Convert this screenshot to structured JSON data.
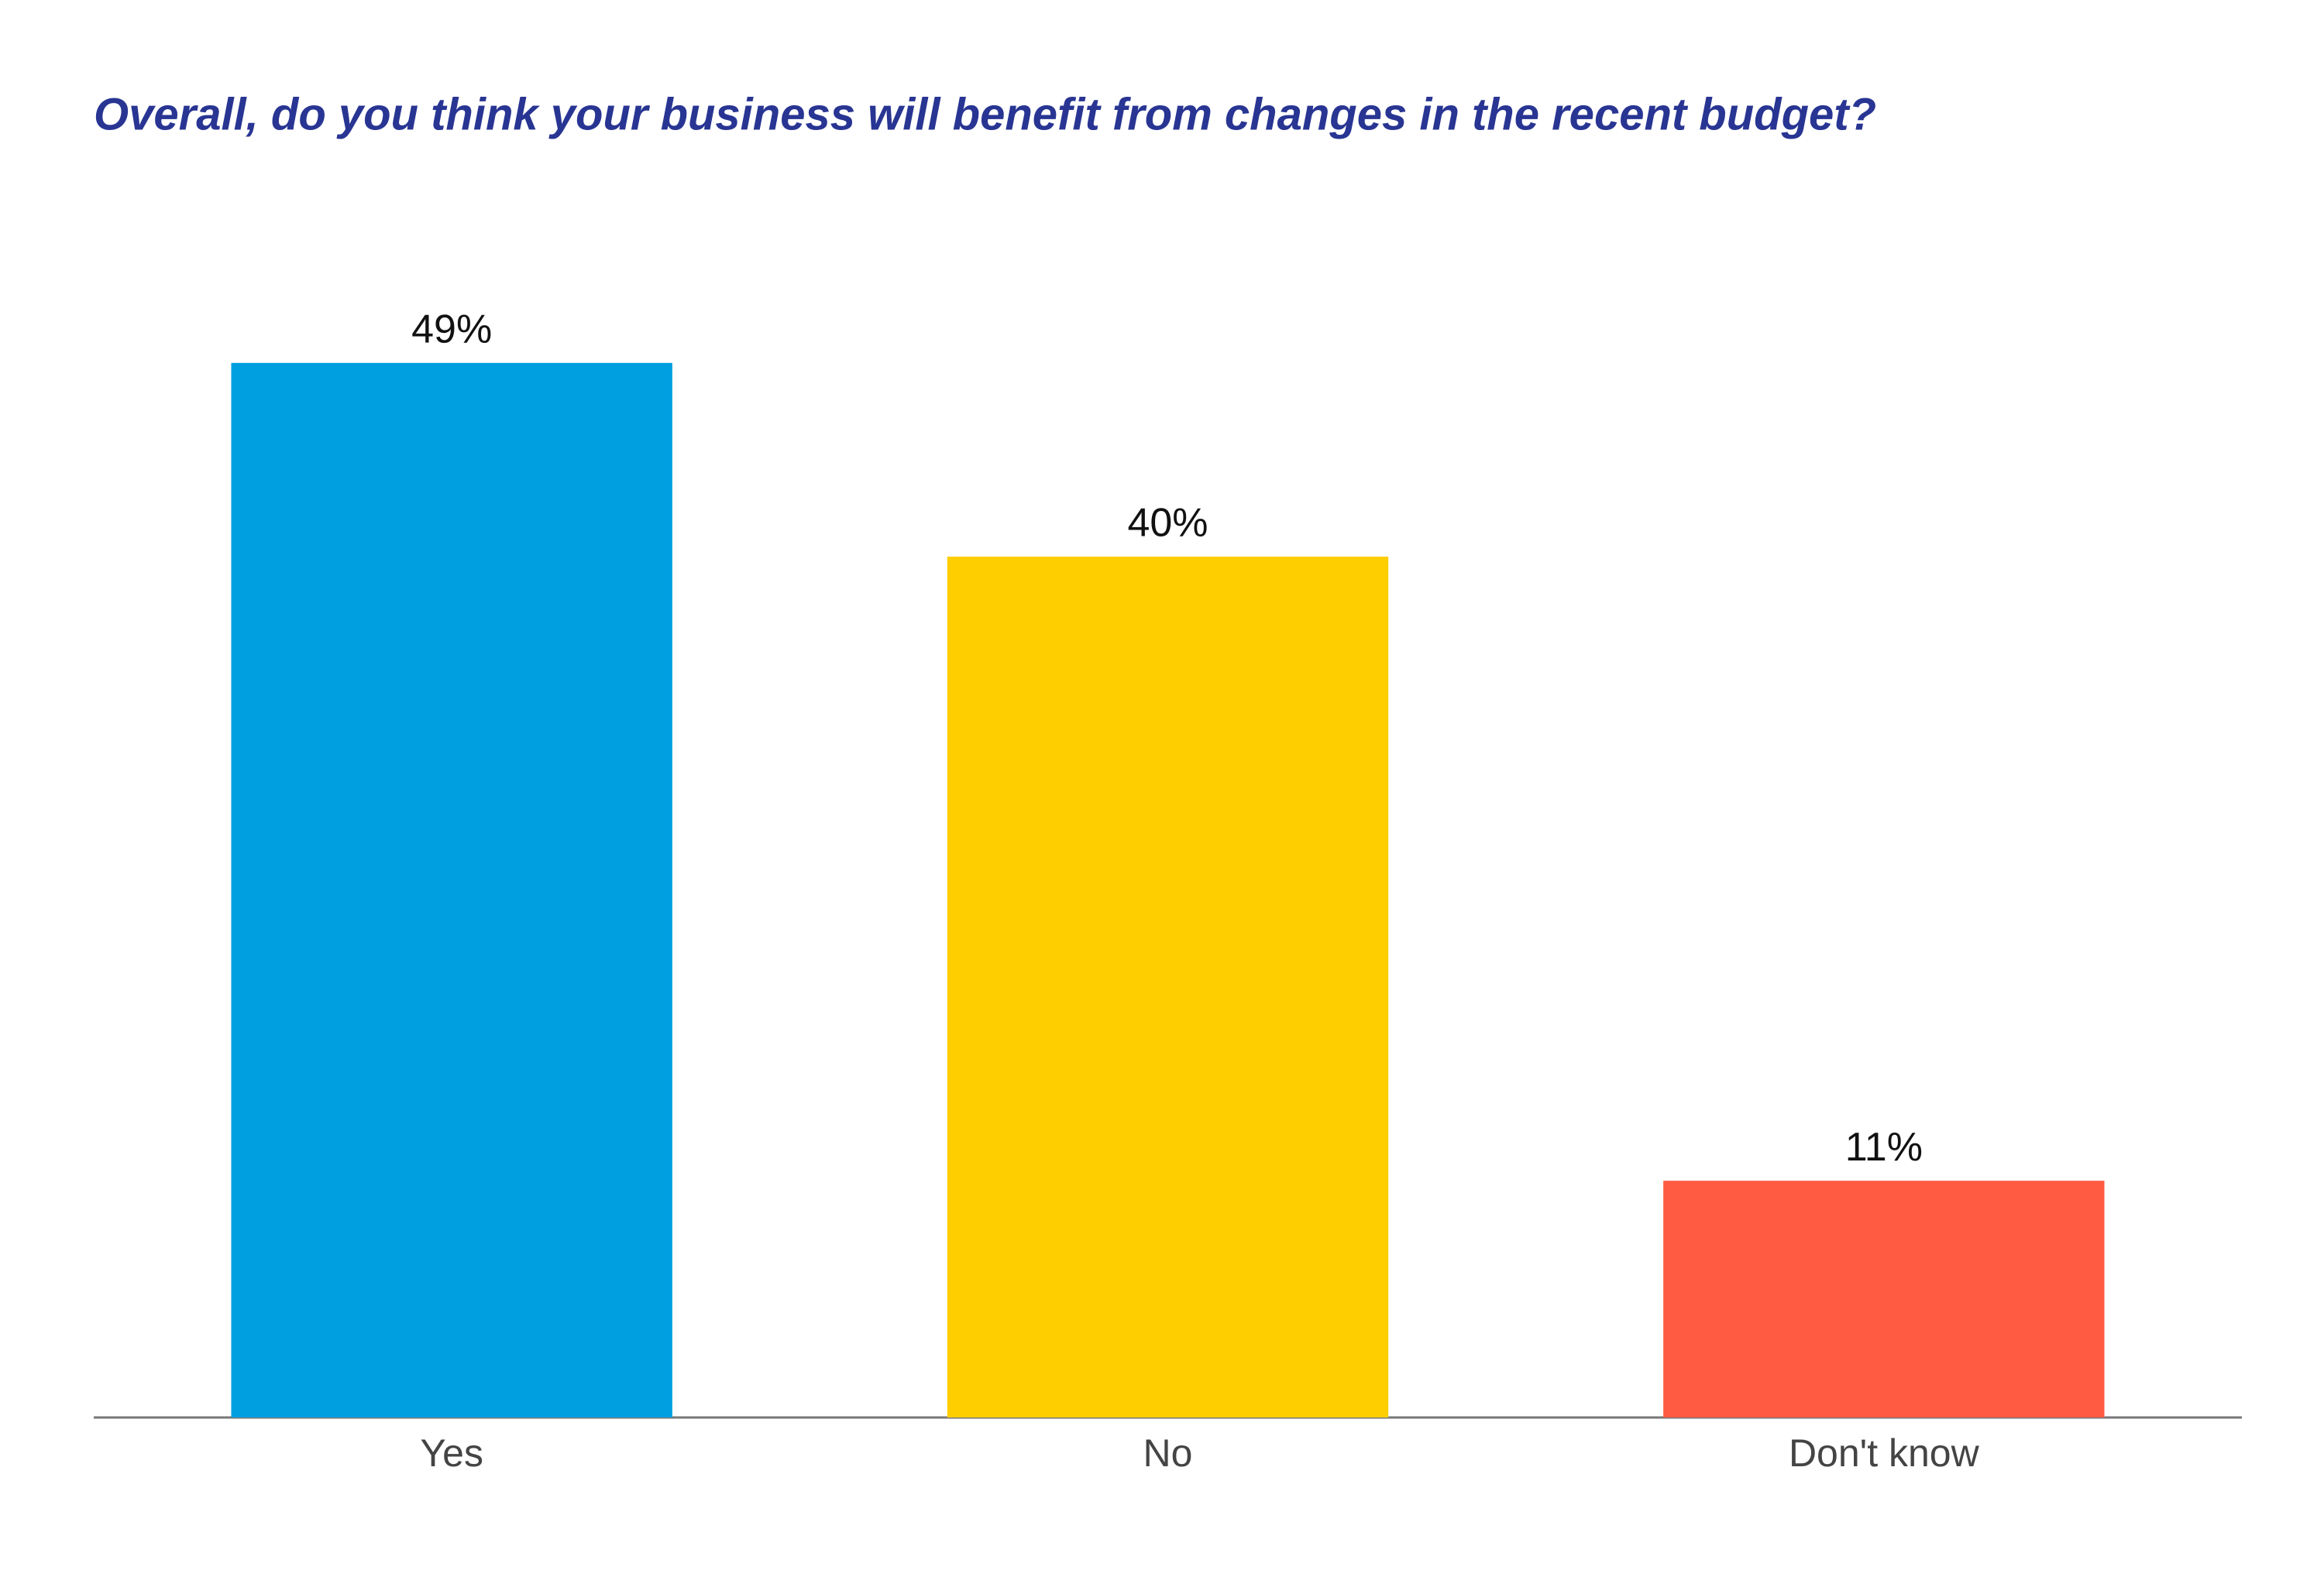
{
  "chart_data": {
    "type": "bar",
    "title": "Overall, do you think your business will benefit from changes in the recent budget?",
    "categories": [
      "Yes",
      "No",
      "Don't know"
    ],
    "values": [
      49,
      40,
      11
    ],
    "value_labels": [
      "49%",
      "40%",
      "11%"
    ],
    "colors": [
      "#009fe0",
      "#fece00",
      "#ff5b42"
    ],
    "ylim": [
      0,
      50
    ]
  }
}
